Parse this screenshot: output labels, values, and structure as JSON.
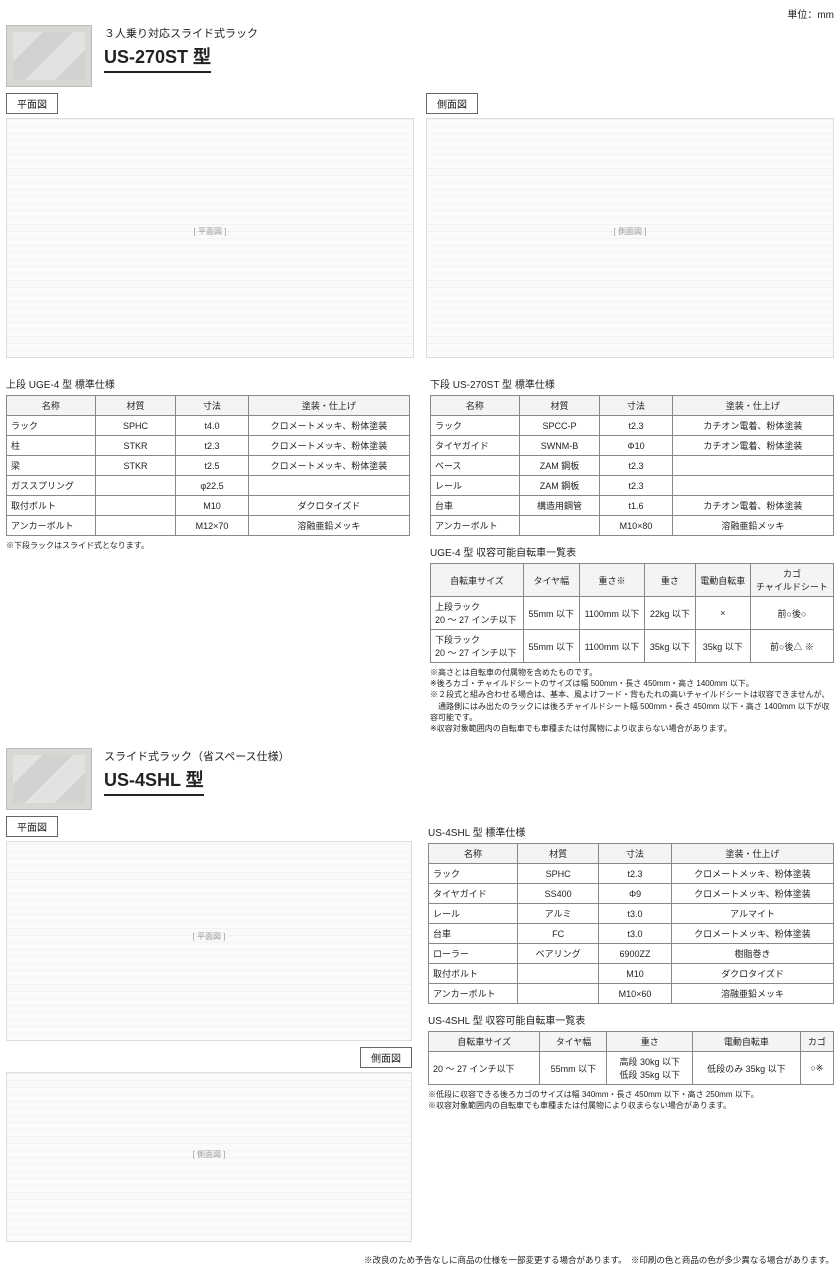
{
  "unit_note": "単位：mm",
  "product1": {
    "subtitle": "３人乗り対応スライド式ラック",
    "model": "US-270ST 型",
    "plan_label": "平面図",
    "side_label": "側面図"
  },
  "spec_uge4": {
    "title": "上段 UGE-4 型 標準仕様",
    "columns": [
      "名称",
      "材質",
      "寸法",
      "塗装・仕上げ"
    ],
    "rows": [
      [
        "ラック",
        "SPHC",
        "t4.0",
        "クロメートメッキ、粉体塗装"
      ],
      [
        "柱",
        "STKR",
        "t2.3",
        "クロメートメッキ、粉体塗装"
      ],
      [
        "梁",
        "STKR",
        "t2.5",
        "クロメートメッキ、粉体塗装"
      ],
      [
        "ガススプリング",
        "",
        "φ22.5",
        ""
      ],
      [
        "取付ボルト",
        "",
        "M10",
        "ダクロタイズド"
      ],
      [
        "アンカーボルト",
        "",
        "M12×70",
        "溶融亜鉛メッキ"
      ]
    ],
    "note": "※下段ラックはスライド式となります。"
  },
  "spec_us270": {
    "title": "下段 US-270ST 型 標準仕様",
    "columns": [
      "名称",
      "材質",
      "寸法",
      "塗装・仕上げ"
    ],
    "rows": [
      [
        "ラック",
        "SPCC-P",
        "t2.3",
        "カチオン電着、粉体塗装"
      ],
      [
        "タイヤガイド",
        "SWNM-B",
        "Φ10",
        "カチオン電着、粉体塗装"
      ],
      [
        "ベース",
        "ZAM 鋼板",
        "t2.3",
        ""
      ],
      [
        "レール",
        "ZAM 鋼板",
        "t2.3",
        ""
      ],
      [
        "台車",
        "構造用鋼管",
        "t1.6",
        "カチオン電着、粉体塗装"
      ],
      [
        "アンカーボルト",
        "",
        "M10×80",
        "溶融亜鉛メッキ"
      ]
    ]
  },
  "capacity_uge4": {
    "title": "UGE-4 型 収容可能自転車一覧表",
    "columns": [
      "自転車サイズ",
      "タイヤ幅",
      "重さ※",
      "重さ",
      "電動自転車",
      "カゴ\nチャイルドシート"
    ],
    "rows": [
      [
        "上段ラック\n20 ～ 27 インチ以下",
        "55mm 以下",
        "1100mm 以下",
        "22kg 以下",
        "×",
        "前○後○"
      ],
      [
        "下段ラック\n20 ～ 27 インチ以下",
        "55mm 以下",
        "1100mm 以下",
        "35kg 以下",
        "35kg 以下",
        "前○後△ ※"
      ]
    ],
    "notes": [
      "※高さとは自転車の付属物を含めたものです。",
      "※後ろカゴ・チャイルドシートのサイズは幅 500mm・長さ 450mm・高さ 1400mm 以下。",
      "※２段式と組み合わせる場合は、基本、風よけフード・背もたれの高いチャイルドシートは収容できませんが、\n　通路側にはみ出たのラックには後ろチャイルドシート幅 500mm・長さ 450mm 以下・高さ 1400mm 以下が収容可能です。",
      "※収容対象範囲内の自転車でも車種または付属物により収まらない場合があります。"
    ]
  },
  "product2": {
    "subtitle": "スライド式ラック（省スペース仕様）",
    "model": "US-4SHL 型",
    "plan_label": "平面図",
    "side_label": "側面図"
  },
  "spec_us4shl": {
    "title": "US-4SHL 型 標準仕様",
    "columns": [
      "名称",
      "材質",
      "寸法",
      "塗装・仕上げ"
    ],
    "rows": [
      [
        "ラック",
        "SPHC",
        "t2.3",
        "クロメートメッキ、粉体塗装"
      ],
      [
        "タイヤガイド",
        "SS400",
        "Φ9",
        "クロメートメッキ、粉体塗装"
      ],
      [
        "レール",
        "アルミ",
        "t3.0",
        "アルマイト"
      ],
      [
        "台車",
        "FC",
        "t3.0",
        "クロメートメッキ、粉体塗装"
      ],
      [
        "ローラー",
        "ベアリング",
        "6900ZZ",
        "樹脂巻き"
      ],
      [
        "取付ボルト",
        "",
        "M10",
        "ダクロタイズド"
      ],
      [
        "アンカーボルト",
        "",
        "M10×60",
        "溶融亜鉛メッキ"
      ]
    ]
  },
  "capacity_us4shl": {
    "title": "US-4SHL 型 収容可能自転車一覧表",
    "columns": [
      "自転車サイズ",
      "タイヤ幅",
      "重さ",
      "電動自転車",
      "カゴ"
    ],
    "rows": [
      [
        "20 ～ 27 インチ以下",
        "55mm 以下",
        "高段 30kg 以下\n低段 35kg 以下",
        "低段のみ 35kg 以下",
        "○※"
      ]
    ],
    "notes": [
      "※低段に収容できる後ろカゴのサイズは幅 340mm・長さ 450mm 以下・高さ 250mm 以下。",
      "※収容対象範囲内の自転車でも車種または付属物により収まらない場合があります。"
    ]
  },
  "footer_notes": [
    "※改良のため予告なしに商品の仕様を一部変更する場合があります。",
    "※印刷の色と商品の色が多少異なる場合があります。"
  ]
}
